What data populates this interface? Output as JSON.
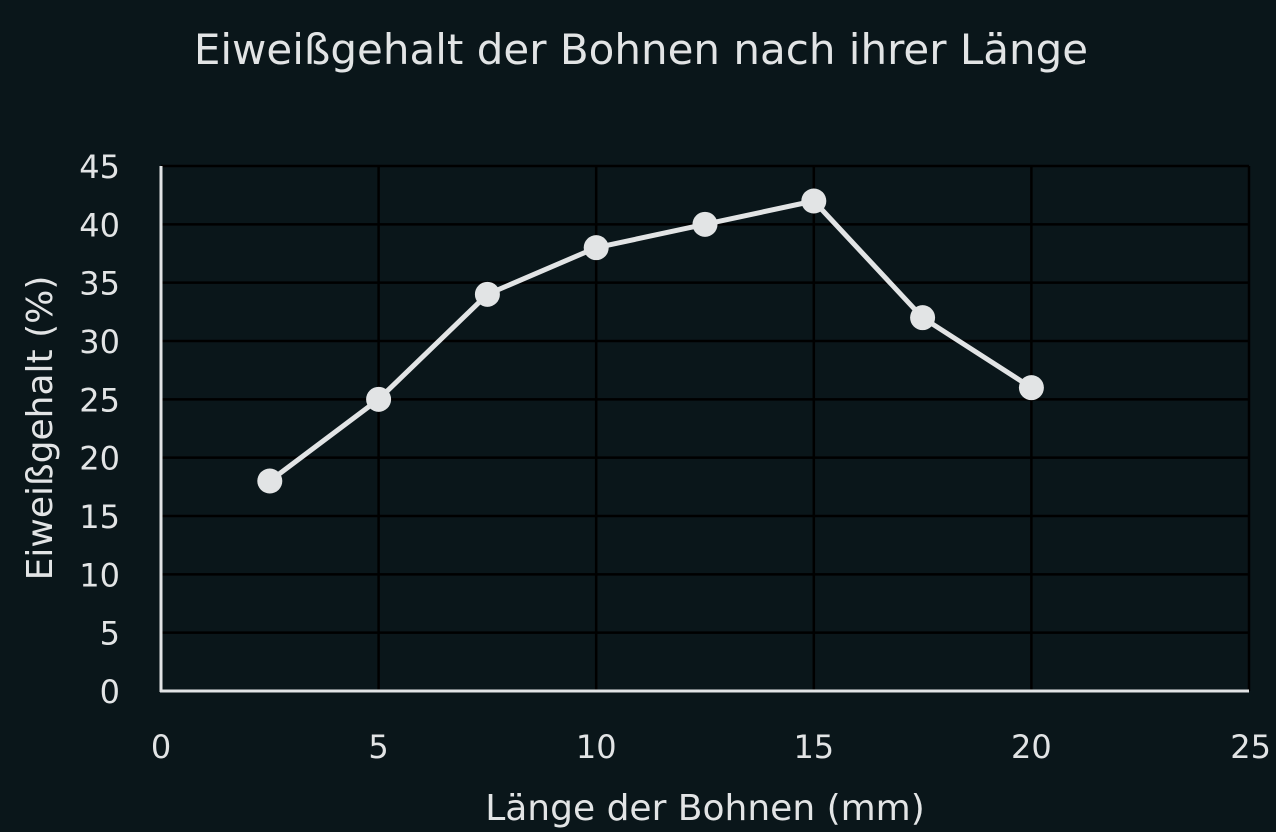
{
  "colors": {
    "background": "#0a161a",
    "plot_background": "#0a161a",
    "grid": "#000000",
    "axis": "#e2e4e5",
    "series": "#e2e4e5",
    "text": "#e2e4e5"
  },
  "chart_data": {
    "type": "line",
    "title": "Eiweißgehalt der Bohnen nach ihrer Länge",
    "xlabel": "Länge der Bohnen (mm)",
    "ylabel": "Eiweißgehalt (%)",
    "xlim": [
      0,
      25
    ],
    "ylim": [
      0,
      45
    ],
    "xticks": [
      0,
      5,
      10,
      15,
      20,
      25
    ],
    "yticks": [
      0,
      5,
      10,
      15,
      20,
      25,
      30,
      35,
      40,
      45
    ],
    "grid": true,
    "legend": "none",
    "series": [
      {
        "x": [
          2.5,
          5,
          7.5,
          10,
          12.5,
          15,
          17.5,
          20
        ],
        "y": [
          18,
          25,
          34,
          38,
          40,
          42,
          32,
          26
        ]
      }
    ]
  }
}
